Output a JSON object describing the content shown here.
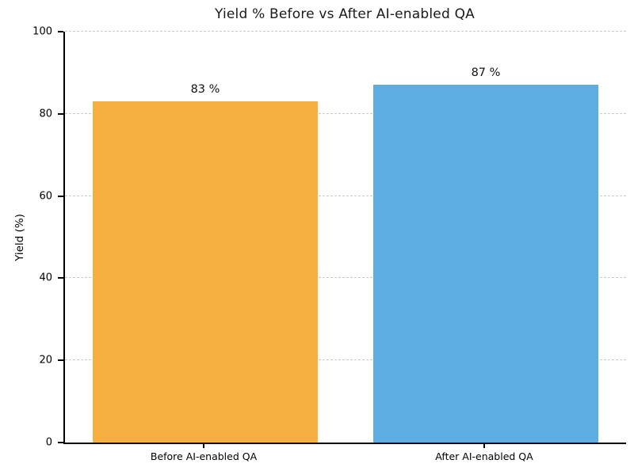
{
  "chart_data": {
    "type": "bar",
    "title": "Yield % Before vs After AI-enabled QA",
    "categories": [
      "Before AI-enabled QA",
      "After AI-enabled QA"
    ],
    "values": [
      83,
      87
    ],
    "value_labels": [
      "83 %",
      "87 %"
    ],
    "bar_colors": [
      "#F5B041",
      "#5DADE2"
    ],
    "xlabel": "",
    "ylabel": "Yield (%)",
    "ylim": [
      0,
      100
    ],
    "yticks": [
      0,
      20,
      40,
      60,
      80,
      100
    ],
    "grid": "horizontal-dashed",
    "legend": "none"
  },
  "colors": {
    "background": "#ffffff",
    "grid": "#c9c9c9",
    "axis": "#000000",
    "title_text": "#1a1a1a",
    "tick_text": "#000000"
  }
}
